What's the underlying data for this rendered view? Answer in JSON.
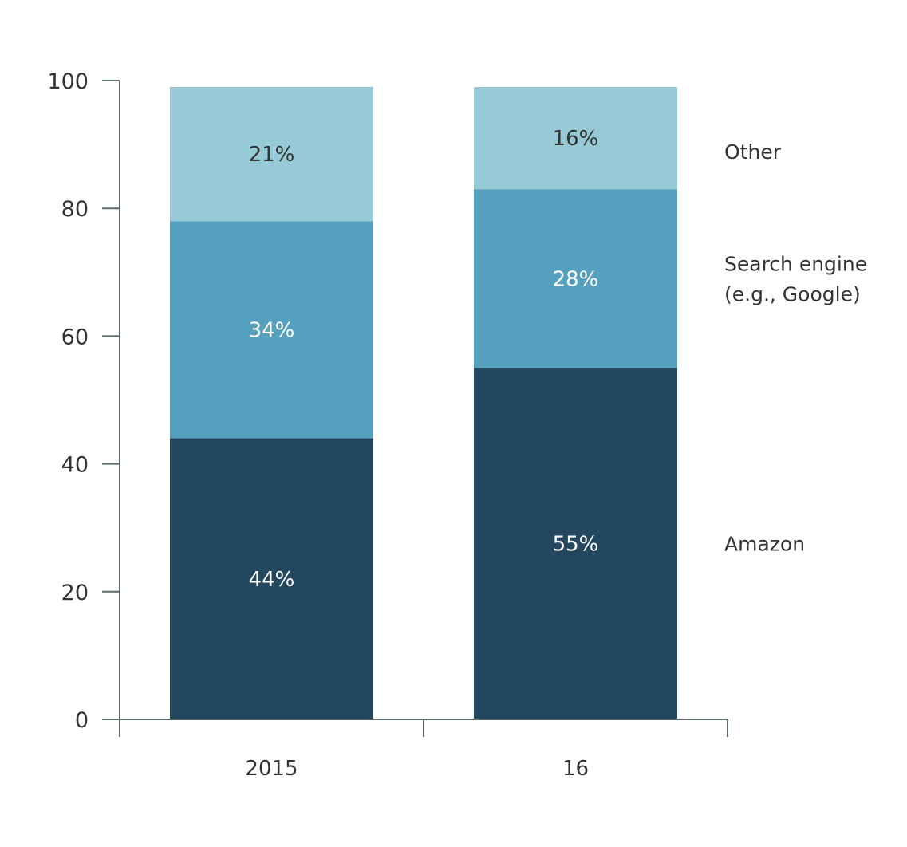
{
  "chart_data": {
    "type": "bar",
    "stacked": true,
    "categories": [
      "2015",
      "16"
    ],
    "series": [
      {
        "name": "Amazon",
        "values": [
          44,
          55
        ],
        "labels": [
          "44%",
          "55%"
        ],
        "color": "#22475f",
        "label_color": "#ffffff"
      },
      {
        "name": "Search engine (e.g., Google)",
        "name_lines": [
          "Search engine",
          "(e.g., Google)"
        ],
        "values": [
          34,
          28
        ],
        "labels": [
          "34%",
          "28%"
        ],
        "color": "#55a0bf",
        "label_color": "#ffffff"
      },
      {
        "name": "Other",
        "values": [
          21,
          16
        ],
        "labels": [
          "21%",
          "16%"
        ],
        "color": "#96cad6",
        "label_color": "#333333"
      }
    ],
    "yticks": [
      0,
      20,
      40,
      60,
      80,
      100
    ],
    "ylim": [
      0,
      100
    ],
    "title": "",
    "xlabel": "",
    "ylabel": "",
    "grid": false,
    "legend_position": "right, aligned with segments of last bar"
  }
}
